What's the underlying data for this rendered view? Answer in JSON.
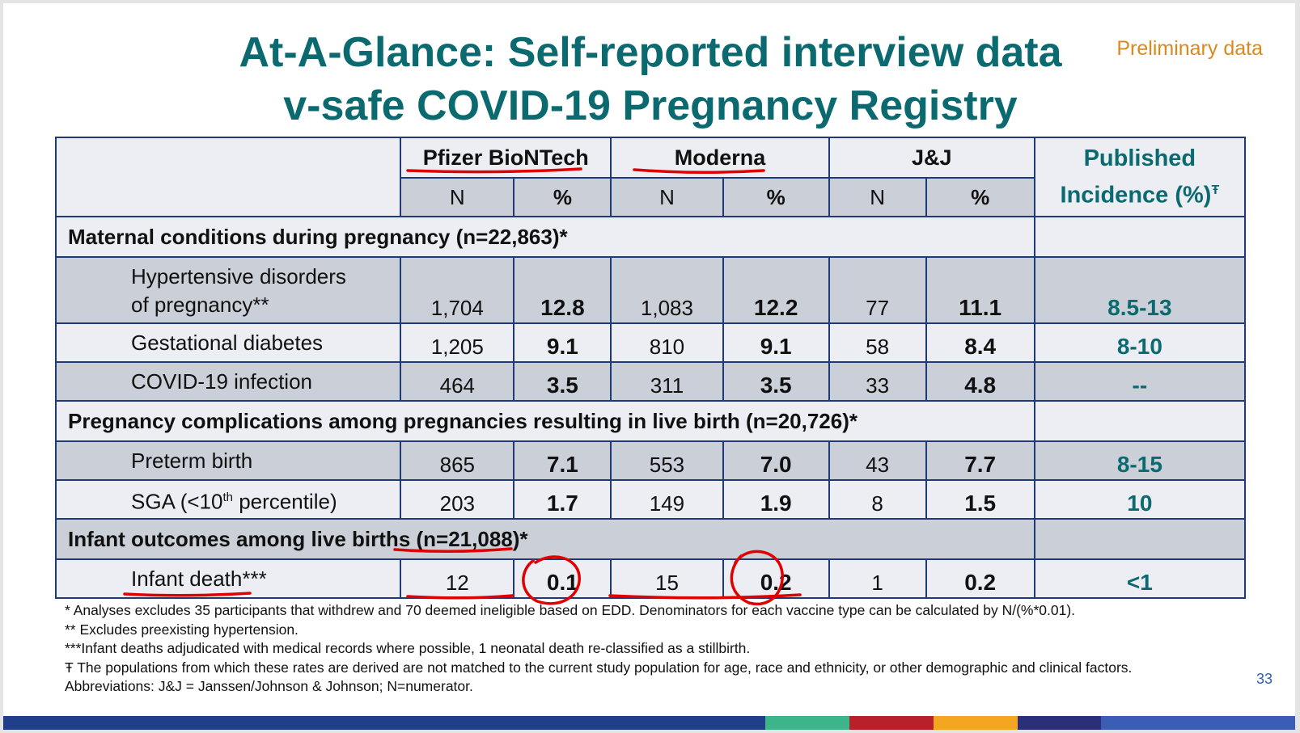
{
  "title_line1": "At-A-Glance: Self-reported interview data",
  "title_line2": "v-safe COVID-19 Pregnancy Registry",
  "preliminary": "Preliminary data",
  "headers": {
    "pfizer": "Pfizer BioNTech",
    "moderna": "Moderna",
    "jj": "J&J",
    "published_line1": "Published",
    "published_line2": "Incidence (%)",
    "published_mark": "Ŧ",
    "n": "N",
    "pct": "%"
  },
  "sections": {
    "maternal": "Maternal conditions during pregnancy (n=22,863)*",
    "pregnancy": "Pregnancy complications among pregnancies resulting in live birth (n=20,726)*",
    "infant": "Infant outcomes among live births (n=21,088)*"
  },
  "rows": {
    "hypertensive": {
      "label_line1": "Hypertensive disorders",
      "label_line2": "of pregnancy**",
      "pfizer_n": "1,704",
      "pfizer_pct": "12.8",
      "moderna_n": "1,083",
      "moderna_pct": "12.2",
      "jj_n": "77",
      "jj_pct": "11.1",
      "published": "8.5-13"
    },
    "gestational": {
      "label": "Gestational diabetes",
      "pfizer_n": "1,205",
      "pfizer_pct": "9.1",
      "moderna_n": "810",
      "moderna_pct": "9.1",
      "jj_n": "58",
      "jj_pct": "8.4",
      "published": "8-10"
    },
    "covid": {
      "label": "COVID-19 infection",
      "pfizer_n": "464",
      "pfizer_pct": "3.5",
      "moderna_n": "311",
      "moderna_pct": "3.5",
      "jj_n": "33",
      "jj_pct": "4.8",
      "published": "--"
    },
    "preterm": {
      "label": "Preterm birth",
      "pfizer_n": "865",
      "pfizer_pct": "7.1",
      "moderna_n": "553",
      "moderna_pct": "7.0",
      "jj_n": "43",
      "jj_pct": "7.7",
      "published": "8-15"
    },
    "sga": {
      "label_pre": "SGA (<10",
      "label_sup": "th",
      "label_post": " percentile)",
      "pfizer_n": "203",
      "pfizer_pct": "1.7",
      "moderna_n": "149",
      "moderna_pct": "1.9",
      "jj_n": "8",
      "jj_pct": "1.5",
      "published": "10"
    },
    "infant_death": {
      "label": "Infant death***",
      "pfizer_n": "12",
      "pfizer_pct": "0.1",
      "moderna_n": "15",
      "moderna_pct": "0.2",
      "jj_n": "1",
      "jj_pct": "0.2",
      "published": "<1"
    }
  },
  "footnotes": [
    "* Analyses excludes 35 participants that withdrew and 70 deemed ineligible based on EDD. Denominators for each vaccine type can be calculated by N/(%*0.01).",
    "** Excludes preexisting hypertension.",
    "***Infant deaths adjudicated with medical records where possible, 1 neonatal death re-classified as a stillbirth.",
    "Ŧ The populations from which these rates are derived are not matched to the current study population for age, race and ethnicity, or other demographic and clinical factors.",
    "Abbreviations: J&J = Janssen/Johnson & Johnson; N=numerator."
  ],
  "page_number": "33",
  "colors": {
    "title": "#0b6a70",
    "preliminary": "#d98a1e",
    "border": "#1f3a78",
    "annotation": "#e00000",
    "bar": [
      "#1f3f8a",
      "#3db58a",
      "#b8202a",
      "#f4a623",
      "#2b2f7a",
      "#3b5db5"
    ]
  },
  "chart_data": {
    "type": "table",
    "title": "At-A-Glance: Self-reported interview data v-safe COVID-19 Pregnancy Registry",
    "columns": [
      "Pfizer BioNTech N",
      "Pfizer BioNTech %",
      "Moderna N",
      "Moderna %",
      "J&J N",
      "J&J %",
      "Published Incidence (%)"
    ],
    "sections": [
      {
        "name": "Maternal conditions during pregnancy (n=22,863)*",
        "rows": [
          {
            "label": "Hypertensive disorders of pregnancy**",
            "values": [
              1704,
              12.8,
              1083,
              12.2,
              77,
              11.1,
              "8.5-13"
            ]
          },
          {
            "label": "Gestational diabetes",
            "values": [
              1205,
              9.1,
              810,
              9.1,
              58,
              8.4,
              "8-10"
            ]
          },
          {
            "label": "COVID-19 infection",
            "values": [
              464,
              3.5,
              311,
              3.5,
              33,
              4.8,
              "--"
            ]
          }
        ]
      },
      {
        "name": "Pregnancy complications among pregnancies resulting in live birth (n=20,726)*",
        "rows": [
          {
            "label": "Preterm birth",
            "values": [
              865,
              7.1,
              553,
              7.0,
              43,
              7.7,
              "8-15"
            ]
          },
          {
            "label": "SGA (<10th percentile)",
            "values": [
              203,
              1.7,
              149,
              1.9,
              8,
              1.5,
              "10"
            ]
          }
        ]
      },
      {
        "name": "Infant outcomes among live births (n=21,088)*",
        "rows": [
          {
            "label": "Infant death***",
            "values": [
              12,
              0.1,
              15,
              0.2,
              1,
              0.2,
              "<1"
            ]
          }
        ]
      }
    ]
  }
}
